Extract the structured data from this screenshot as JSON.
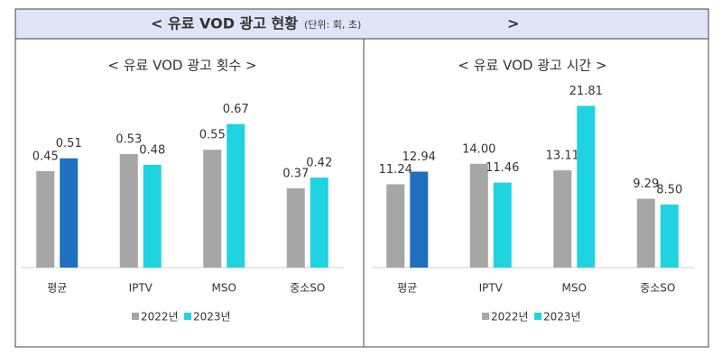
{
  "header": {
    "title": "< 유료 VOD 광고 현황",
    "unit": "(단위: 회, 초)",
    "title_end": ">"
  },
  "chart_data": [
    {
      "type": "bar",
      "title": "< 유료 VOD 광고 횟수 >",
      "categories": [
        "평균",
        "IPTV",
        "MSO",
        "중소SO"
      ],
      "series": [
        {
          "name": "2022년",
          "color": "#a6a6a6",
          "values": [
            0.45,
            0.53,
            0.55,
            0.37
          ]
        },
        {
          "name": "2023년",
          "color": "#1fd3e0",
          "colors": [
            "#1f6fc0",
            "#1fd3e0",
            "#1fd3e0",
            "#1fd3e0"
          ],
          "values": [
            0.51,
            0.48,
            0.67,
            0.42
          ]
        }
      ],
      "ylim": [
        0,
        0.9
      ]
    },
    {
      "type": "bar",
      "title": "< 유료 VOD 광고 시간 >",
      "categories": [
        "평균",
        "IPTV",
        "MSO",
        "중소SO"
      ],
      "series": [
        {
          "name": "2022년",
          "color": "#a6a6a6",
          "values": [
            11.24,
            14,
            13.11,
            9.29
          ],
          "value_labels": [
            "11.24",
            "14.00",
            "13.11",
            "9.29"
          ]
        },
        {
          "name": "2023년",
          "color": "#1fd3e0",
          "colors": [
            "#1f6fc0",
            "#1fd3e0",
            "#1fd3e0",
            "#1fd3e0"
          ],
          "values": [
            12.94,
            11.46,
            21.81,
            8.5
          ],
          "value_labels": [
            "12.94",
            "11.46",
            "21.81",
            "8.50"
          ]
        }
      ],
      "ylim": [
        0,
        26
      ]
    }
  ]
}
